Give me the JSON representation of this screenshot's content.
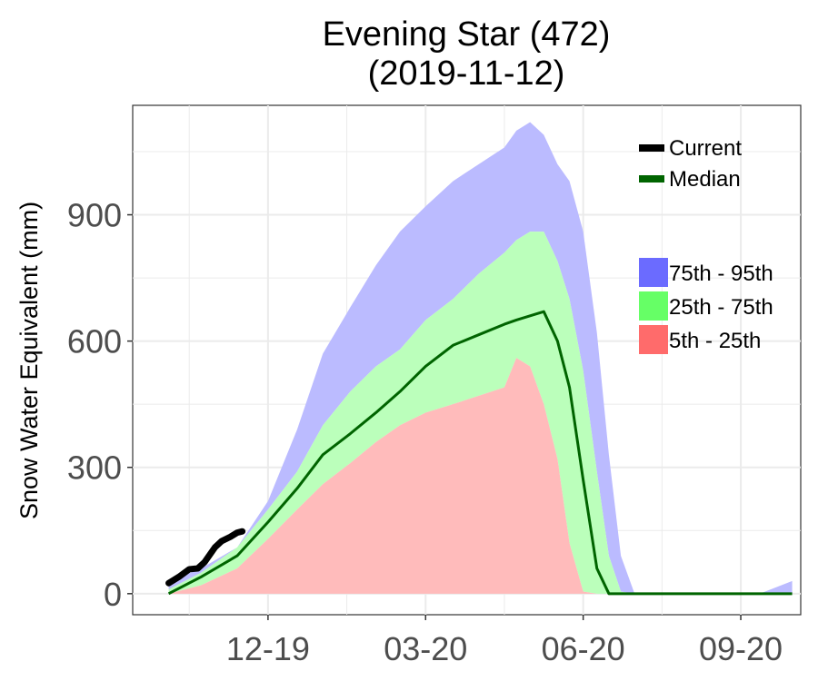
{
  "chart_data": {
    "type": "area",
    "title": "Evening Star (472)",
    "subtitle": "(2019-11-12)",
    "xlabel": "",
    "ylabel": "Snow Water Equivalent (mm)",
    "x_ticks": [
      "12-19",
      "03-20",
      "06-20",
      "09-20"
    ],
    "x_tick_dates": [
      "2019-12-19",
      "2020-03-20",
      "2020-06-20",
      "2020-09-20"
    ],
    "x_range": [
      "2019-10-01",
      "2020-10-25"
    ],
    "y_ticks": [
      0,
      300,
      600,
      900
    ],
    "ylim": [
      -50,
      1160
    ],
    "grid": true,
    "legend": {
      "lines": [
        {
          "label": "Current",
          "color": "#000000"
        },
        {
          "label": "Median",
          "color": "#006400"
        }
      ],
      "bands": [
        {
          "label": "75th - 95th",
          "color": "#6b6bff"
        },
        {
          "label": "25th - 75th",
          "color": "#66ff66"
        },
        {
          "label": "5th - 25th",
          "color": "#ff6b6b"
        }
      ],
      "placement": "top-right"
    },
    "band_colors": {
      "b95": "#bbbbff",
      "b75": "#bbffbb",
      "b25": "#ffbbbb"
    },
    "x": [
      "2019-10-22",
      "2019-11-10",
      "2019-12-01",
      "2019-12-19",
      "2020-01-05",
      "2020-01-20",
      "2020-02-05",
      "2020-02-20",
      "2020-03-05",
      "2020-03-20",
      "2020-04-05",
      "2020-04-20",
      "2020-05-05",
      "2020-05-12",
      "2020-05-20",
      "2020-05-28",
      "2020-06-05",
      "2020-06-12",
      "2020-06-20",
      "2020-06-28",
      "2020-07-05",
      "2020-07-12",
      "2020-07-20",
      "2020-08-01",
      "2020-09-01",
      "2020-10-01",
      "2020-10-20"
    ],
    "series": [
      {
        "name": "p95",
        "values": [
          30,
          60,
          110,
          220,
          390,
          570,
          680,
          780,
          860,
          920,
          980,
          1020,
          1060,
          1100,
          1120,
          1090,
          1020,
          980,
          860,
          620,
          330,
          90,
          0,
          0,
          0,
          0,
          30
        ]
      },
      {
        "name": "p75",
        "values": [
          10,
          50,
          110,
          200,
          290,
          400,
          480,
          540,
          580,
          650,
          700,
          760,
          810,
          840,
          860,
          860,
          790,
          700,
          530,
          290,
          90,
          5,
          0,
          0,
          0,
          0,
          0
        ]
      },
      {
        "name": "Median",
        "values": [
          0,
          40,
          90,
          170,
          250,
          330,
          380,
          430,
          480,
          540,
          590,
          615,
          640,
          650,
          660,
          670,
          600,
          490,
          270,
          60,
          0,
          0,
          0,
          0,
          0,
          0,
          0
        ]
      },
      {
        "name": "p25",
        "values": [
          0,
          20,
          60,
          130,
          200,
          260,
          310,
          360,
          400,
          430,
          450,
          470,
          490,
          560,
          540,
          450,
          320,
          120,
          5,
          0,
          0,
          0,
          0,
          0,
          0,
          0,
          0
        ]
      },
      {
        "name": "p5",
        "values": [
          0,
          0,
          0,
          0,
          0,
          0,
          0,
          0,
          0,
          0,
          0,
          0,
          0,
          0,
          0,
          0,
          0,
          0,
          0,
          0,
          0,
          0,
          0,
          0,
          0,
          0,
          0
        ]
      },
      {
        "name": "Current",
        "x": [
          "2019-10-22",
          "2019-10-28",
          "2019-11-03",
          "2019-11-08",
          "2019-11-12",
          "2019-11-18",
          "2019-11-22",
          "2019-11-27",
          "2019-12-01",
          "2019-12-04"
        ],
        "values": [
          25,
          40,
          58,
          60,
          75,
          110,
          125,
          135,
          145,
          148
        ]
      }
    ]
  }
}
